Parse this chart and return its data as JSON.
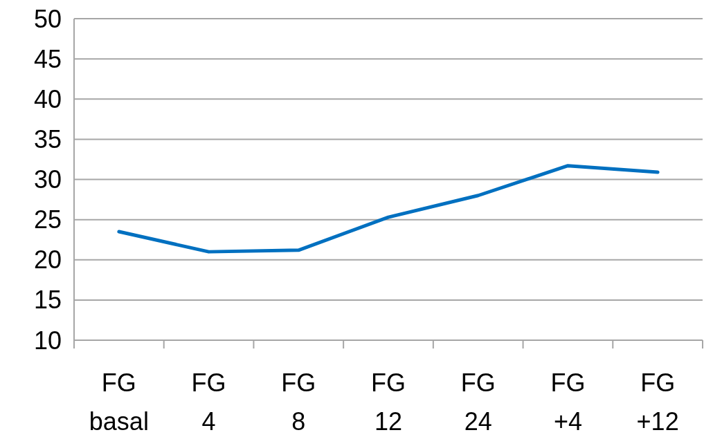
{
  "chart_data": {
    "type": "line",
    "categories": [
      "FG basal",
      "FG 4",
      "FG 8",
      "FG 12",
      "FG 24",
      "FG +4",
      "FG +12"
    ],
    "series": [
      {
        "color": "#0070c0",
        "values": [
          23.5,
          21.0,
          21.2,
          25.3,
          28.0,
          31.7,
          30.9
        ]
      }
    ],
    "ylim": [
      10,
      50
    ],
    "yticks": [
      10,
      15,
      20,
      25,
      30,
      35,
      40,
      45,
      50
    ],
    "grid": "y",
    "marker": "none",
    "line_style": "solid"
  }
}
